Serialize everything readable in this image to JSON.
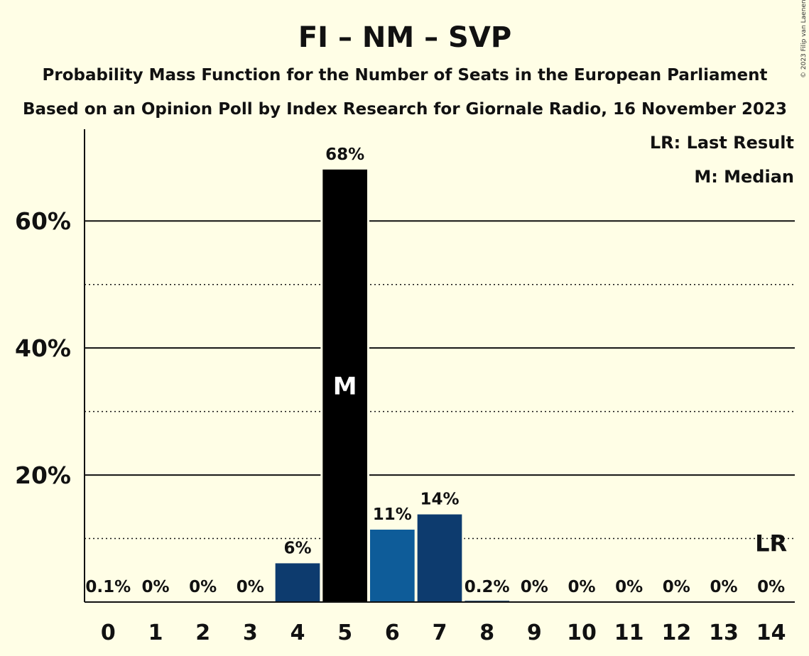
{
  "chart_data": {
    "type": "bar",
    "title": "FI – NM – SVP",
    "subtitle1": "Probability Mass Function for the Number of Seats in the European Parliament",
    "subtitle2": "Based on an Opinion Poll by Index Research for Giornale Radio, 16 November 2023",
    "categories": [
      "0",
      "1",
      "2",
      "3",
      "4",
      "5",
      "6",
      "7",
      "8",
      "9",
      "10",
      "11",
      "12",
      "13",
      "14"
    ],
    "values": [
      0.1,
      0,
      0,
      0,
      6.1,
      68.1,
      11.4,
      13.8,
      0.2,
      0,
      0,
      0,
      0,
      0,
      0
    ],
    "value_labels": [
      "0.1%",
      "0%",
      "0%",
      "0%",
      "6%",
      "68%",
      "11%",
      "14%",
      "0.2%",
      "0%",
      "0%",
      "0%",
      "0%",
      "0%",
      "0%"
    ],
    "bar_colors": [
      "#0D3B6E",
      "#0D3B6E",
      "#0D3B6E",
      "#0D3B6E",
      "#0D3B6E",
      "#000000",
      "#0E5C99",
      "#0D3B6E",
      "#0D3B6E",
      "#0D3B6E",
      "#0D3B6E",
      "#0D3B6E",
      "#0D3B6E",
      "#0D3B6E",
      "#0D3B6E"
    ],
    "ylim": [
      0,
      74
    ],
    "yticks": [
      {
        "value": 20,
        "label": "20%"
      },
      {
        "value": 40,
        "label": "40%"
      },
      {
        "value": 60,
        "label": "60%"
      }
    ],
    "minor_gridlines": [
      10,
      30,
      50
    ],
    "median": {
      "index": 5,
      "label": "M"
    },
    "last_result": {
      "index": 14,
      "label": "LR",
      "level": 10
    },
    "legend": {
      "position": "top-right",
      "items": [
        "LR: Last Result",
        "M: Median"
      ]
    },
    "copyright": "© 2023 Filip van Laenen"
  }
}
